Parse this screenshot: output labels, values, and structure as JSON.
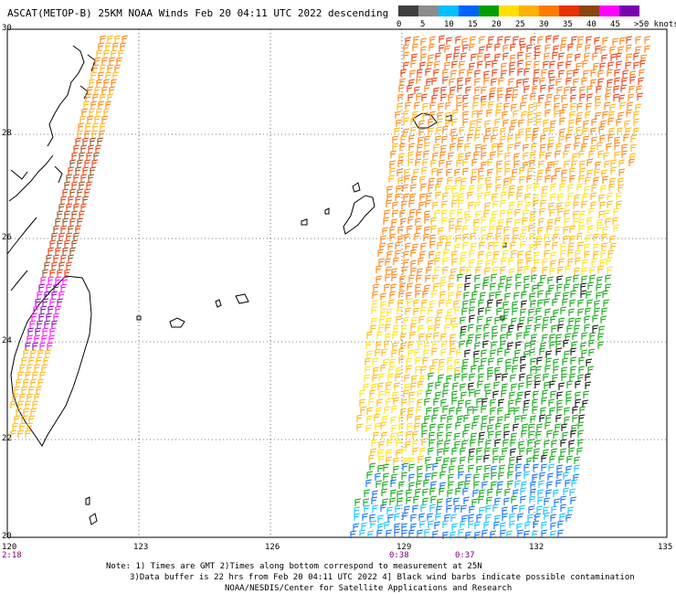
{
  "title": "ASCAT(METOP-B) 25KM NOAA Winds  Feb 20 04:11 UTC 2022 descending",
  "colorbar": {
    "labels": [
      "0",
      "5",
      "10",
      "15",
      "20",
      "25",
      "30",
      "35",
      "40",
      "45",
      ">50 knots"
    ],
    "colors": [
      "#404040",
      "#8c8c8c",
      "#00c0ff",
      "#0064ff",
      "#00a000",
      "#ffe000",
      "#ffb000",
      "#ff7a00",
      "#e83000",
      "#8b4513",
      "#ff00ff",
      "#7a00b0"
    ]
  },
  "axes": {
    "lat_labels": [
      "30",
      "28",
      "26",
      "24",
      "22",
      "20"
    ],
    "lon_labels": [
      "120",
      "123",
      "126",
      "129",
      "132",
      "135"
    ],
    "time_labels": [
      "2:18",
      "0:38",
      "0:37"
    ]
  },
  "notes": [
    "Note: 1) Times are GMT 2)Times along bottom correspond to measurement at 25N",
    "3)Data buffer is 22 hrs from Feb 20 04:11 UTC 2022 4] Black wind barbs indicate possible contamination",
    "NOAA/NESDIS/Center for Satellite Applications and Research"
  ]
}
